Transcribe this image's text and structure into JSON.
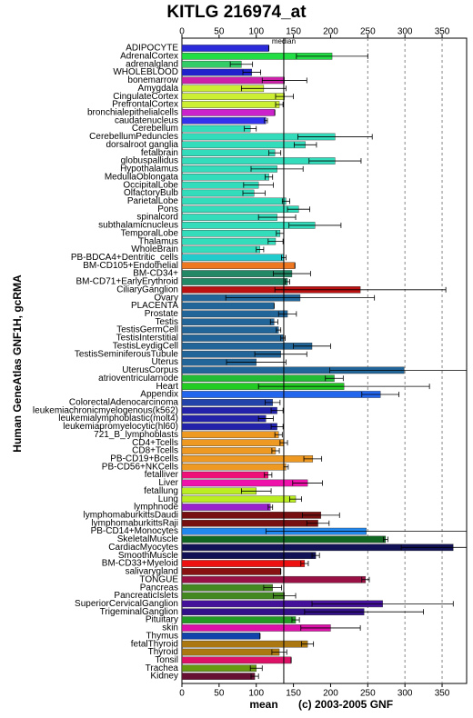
{
  "chart_data": {
    "type": "hbar_error",
    "title": "KITLG 216974_at",
    "y_label": "Human GeneAtlas GNF1H, gcRMA",
    "x_label": "mean",
    "credit": "(c) 2003-2005 GNF",
    "median_label": "median",
    "median_value": 137,
    "categories": [
      "ADIPOCYTE",
      "AdrenalCortex",
      "adrenalgland",
      "WHOLEBLOOD",
      "bonemarrow",
      "Amygdala",
      "CingulateCortex",
      "PrefrontalCortex",
      "bronchialepithelialcells",
      "caudatenucleus",
      "Cerebellum",
      "CerebellumPeduncles",
      "dorsalroot ganglia",
      "fetalbrain",
      "globuspallidus",
      "Hypothalamus",
      "MedullaOblongata",
      "OccipitalLobe",
      "OlfactoryBulb",
      "ParietalLobe",
      "Pons",
      "spinalcord",
      "subthalamicnucleus",
      "TemporalLobe",
      "Thalamus",
      "WholeBrain",
      "PB-BDCA4+Dentritic_cells",
      "BM-CD105+Endothelial",
      "BM-CD34+",
      "BM-CD71+EarlyErythroid",
      "CiliaryGanglion",
      "Ovary",
      "PLACENTA",
      "Prostate",
      "Testis",
      "TestisGermCell",
      "TestisInterstitial",
      "TestisLeydigCell",
      "TestisSeminiferousTubule",
      "Uterus",
      "UterusCorpus",
      "atrioventricularnode",
      "Heart",
      "Appendix",
      "ColorectalAdenocarcinoma",
      "leukemiachronicmyelogenous(k562)",
      "leukemialymphoblastic(molt4)",
      "leukemiapromyelocytic(hl60)",
      "721_B_lymphoblasts",
      "CD4+Tcells",
      "CD8+Tcells",
      "PB-CD19+Bcells",
      "PB-CD56+NKCells",
      "fetalliver",
      "Liver",
      "fetallung",
      "Lung",
      "lymphnode",
      "lymphomaburkittsDaudi",
      "lymphomaburkittsRaji",
      "PB-CD14+Monocytes",
      "SkeletalMuscle",
      "CardiacMyocytes",
      "SmoothMuscle",
      "BM-CD33+Myeloid",
      "salivarygland",
      "TONGUE",
      "Pancreas",
      "PancreaticIslets",
      "SuperiorCervicalGanglion",
      "TrigeminalGanglion",
      "Pituitary",
      "skin",
      "Thymus",
      "fetalThyroid",
      "Thyroid",
      "Tonsil",
      "Trachea",
      "Kidney"
    ],
    "values": [
      117,
      202,
      80,
      94,
      138,
      110,
      138,
      131,
      125,
      113,
      92,
      206,
      166,
      125,
      206,
      128,
      117,
      103,
      97,
      140,
      157,
      128,
      179,
      132,
      126,
      105,
      137,
      152,
      148,
      142,
      240,
      159,
      124,
      142,
      124,
      130,
      136,
      175,
      133,
      100,
      299,
      205,
      218,
      267,
      122,
      128,
      113,
      128,
      130,
      137,
      126,
      176,
      140,
      116,
      169,
      100,
      153,
      119,
      187,
      183,
      248,
      274,
      365,
      180,
      165,
      133,
      247,
      122,
      138,
      270,
      245,
      153,
      200,
      105,
      169,
      131,
      147,
      100,
      98
    ],
    "errors": [
      0,
      48,
      15,
      12,
      30,
      30,
      12,
      5,
      0,
      2,
      8,
      50,
      15,
      8,
      35,
      35,
      5,
      20,
      15,
      5,
      15,
      25,
      35,
      5,
      10,
      5,
      3,
      0,
      25,
      3,
      115,
      100,
      0,
      12,
      5,
      3,
      3,
      25,
      35,
      40,
      100,
      12,
      115,
      25,
      10,
      8,
      10,
      8,
      5,
      5,
      5,
      12,
      3,
      5,
      20,
      20,
      8,
      3,
      25,
      15,
      135,
      3,
      70,
      5,
      5,
      0,
      5,
      12,
      15,
      95,
      80,
      5,
      40,
      0,
      8,
      10,
      0,
      8,
      5
    ],
    "colors": [
      "#2b2bd9",
      "#22dd44",
      "#33cc66",
      "#2222cc",
      "#cc22aa",
      "#ccee33",
      "#ccee33",
      "#ccee33",
      "#cc22cc",
      "#3333ee",
      "#33ddbb",
      "#33ddbb",
      "#33ddbb",
      "#33ddbb",
      "#33ddbb",
      "#33ddbb",
      "#33ddbb",
      "#33ddbb",
      "#33ddbb",
      "#33ddbb",
      "#33ddbb",
      "#33ddbb",
      "#33ddbb",
      "#33ddbb",
      "#33ddbb",
      "#33ddbb",
      "#22cccc",
      "#ee7722",
      "#228866",
      "#228866",
      "#bb1111",
      "#226699",
      "#226699",
      "#226699",
      "#226699",
      "#226699",
      "#226699",
      "#226699",
      "#226699",
      "#226699",
      "#226699",
      "#22bb33",
      "#22cc22",
      "#2266ee",
      "#2244aa",
      "#2222aa",
      "#2222aa",
      "#2222aa",
      "#ee9922",
      "#ee9922",
      "#ee9922",
      "#ee9922",
      "#ee9922",
      "#ee1177",
      "#ee11aa",
      "#bbee22",
      "#bbee22",
      "#9922cc",
      "#771111",
      "#771111",
      "#2288ee",
      "#116622",
      "#111155",
      "#111155",
      "#ee1111",
      "#881111",
      "#991144",
      "#448822",
      "#448822",
      "#441199",
      "#331188",
      "#229922",
      "#dd11aa",
      "#1144aa",
      "#aa7711",
      "#aa7711",
      "#dd1166",
      "#669911",
      "#661133"
    ],
    "xlim": [
      0,
      383
    ],
    "xticks": [
      0,
      50,
      100,
      150,
      200,
      250,
      300,
      350
    ],
    "dashed_grid_from": 250
  }
}
